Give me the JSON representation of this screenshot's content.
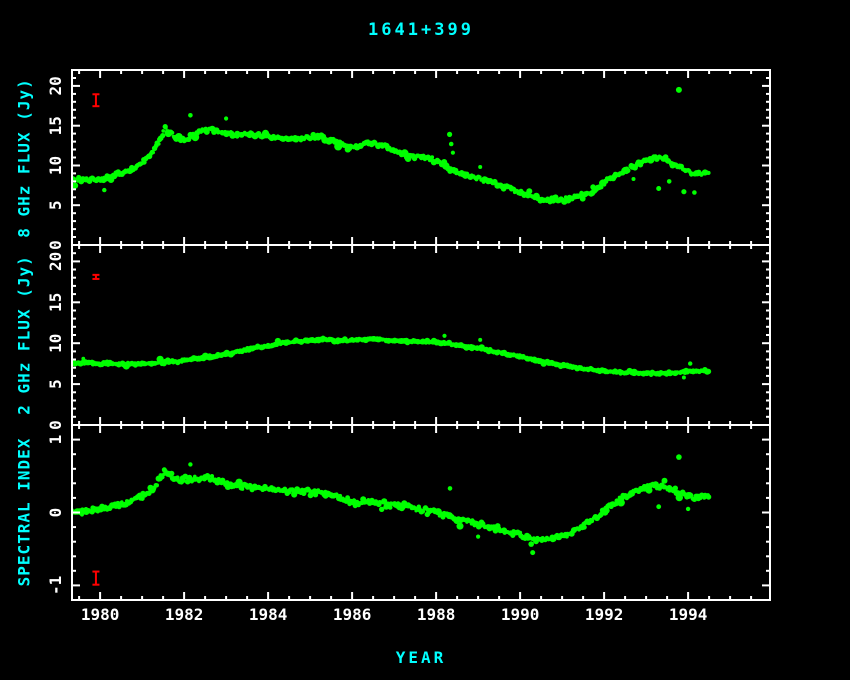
{
  "chart_data": {
    "type": "scatter",
    "title": "1641+399",
    "xlabel": "YEAR",
    "layout": {
      "stacked_panels": 3,
      "shared_x_axis": true,
      "grid": false,
      "legend": "none"
    },
    "x_range": [
      1979.33,
      1995.95
    ],
    "x_ticks": [
      1980,
      1982,
      1984,
      1986,
      1988,
      1990,
      1992,
      1994
    ],
    "x_tick_labels": [
      "1980",
      "1982",
      "1984",
      "1986",
      "1988",
      "1990",
      "1992",
      "1994"
    ],
    "x_minor_step": 0.5,
    "colors": {
      "background": "#000000",
      "frame": "#ffffff",
      "tick_numbers": "#ffffff",
      "axis_labels": "#00ffff",
      "data_points": "#00ff00",
      "error_bars": "#ff0000"
    },
    "panels": [
      {
        "id": "flux-8ghz",
        "ylabel": "8 GHz FLUX (Jy)",
        "y_range": [
          0,
          22
        ],
        "y_ticks": [
          0,
          5,
          10,
          15,
          20
        ],
        "y_tick_labels": [
          "0",
          "5",
          "10",
          "15",
          "20"
        ],
        "y_minor_step": 1,
        "t_range": [
          1979.32,
          1994.5
        ],
        "step": 0.03,
        "jitter": 0.35,
        "seed": 101,
        "anchors": [
          [
            1979.3,
            8.2
          ],
          [
            1979.7,
            8.3
          ],
          [
            1980.0,
            8.3
          ],
          [
            1980.2,
            8.6
          ],
          [
            1980.5,
            9.0
          ],
          [
            1980.8,
            9.6
          ],
          [
            1981.0,
            10.3
          ],
          [
            1981.2,
            11.3
          ],
          [
            1981.4,
            13.0
          ],
          [
            1981.55,
            14.9
          ],
          [
            1981.7,
            14.0
          ],
          [
            1981.9,
            13.2
          ],
          [
            1982.1,
            13.4
          ],
          [
            1982.3,
            14.2
          ],
          [
            1982.6,
            14.6
          ],
          [
            1982.9,
            14.2
          ],
          [
            1983.2,
            13.8
          ],
          [
            1983.5,
            14.0
          ],
          [
            1983.8,
            13.7
          ],
          [
            1984.1,
            13.5
          ],
          [
            1984.5,
            13.3
          ],
          [
            1984.9,
            13.5
          ],
          [
            1985.2,
            13.6
          ],
          [
            1985.5,
            13.2
          ],
          [
            1985.8,
            12.6
          ],
          [
            1986.1,
            12.3
          ],
          [
            1986.4,
            12.8
          ],
          [
            1986.7,
            12.5
          ],
          [
            1987.0,
            11.9
          ],
          [
            1987.3,
            11.3
          ],
          [
            1987.7,
            11.1
          ],
          [
            1988.0,
            10.6
          ],
          [
            1988.3,
            9.5
          ],
          [
            1988.6,
            8.9
          ],
          [
            1989.0,
            8.4
          ],
          [
            1989.4,
            7.7
          ],
          [
            1989.8,
            7.0
          ],
          [
            1990.1,
            6.4
          ],
          [
            1990.4,
            5.9
          ],
          [
            1990.7,
            5.6
          ],
          [
            1991.0,
            5.7
          ],
          [
            1991.4,
            6.1
          ],
          [
            1991.8,
            6.9
          ],
          [
            1992.1,
            8.2
          ],
          [
            1992.5,
            9.4
          ],
          [
            1992.9,
            10.4
          ],
          [
            1993.2,
            11.0
          ],
          [
            1993.5,
            10.7
          ],
          [
            1993.8,
            9.8
          ],
          [
            1994.1,
            9.0
          ],
          [
            1994.5,
            9.0
          ]
        ],
        "outliers": [
          [
            1982.15,
            16.3,
            2.3
          ],
          [
            1983.0,
            15.9,
            2.1
          ],
          [
            1988.32,
            13.9,
            2.6
          ],
          [
            1988.36,
            12.7,
            2.3
          ],
          [
            1988.4,
            11.6,
            2.1
          ],
          [
            1989.05,
            9.8,
            2.0
          ],
          [
            1993.78,
            19.5,
            3.0
          ],
          [
            1993.3,
            7.1,
            2.5
          ],
          [
            1993.55,
            8.0,
            2.3
          ],
          [
            1993.9,
            6.7,
            2.6
          ],
          [
            1994.15,
            6.6,
            2.3
          ],
          [
            1980.1,
            6.9,
            2.2
          ],
          [
            1992.7,
            8.3,
            2.0
          ]
        ],
        "errorbar": {
          "year": 1979.9,
          "value": 18.2,
          "half": 0.75
        }
      },
      {
        "id": "flux-2ghz",
        "ylabel": "2 GHz FLUX (Jy)",
        "y_range": [
          0,
          22
        ],
        "y_ticks": [
          0,
          5,
          10,
          15,
          20
        ],
        "y_tick_labels": [
          "0",
          "5",
          "10",
          "15",
          "20"
        ],
        "y_minor_step": 1,
        "t_range": [
          1979.32,
          1994.5
        ],
        "step": 0.03,
        "jitter": 0.18,
        "seed": 202,
        "anchors": [
          [
            1979.3,
            7.6
          ],
          [
            1980.0,
            7.5
          ],
          [
            1980.5,
            7.4
          ],
          [
            1981.0,
            7.5
          ],
          [
            1981.5,
            7.6
          ],
          [
            1982.0,
            7.9
          ],
          [
            1982.5,
            8.2
          ],
          [
            1983.0,
            8.7
          ],
          [
            1983.5,
            9.2
          ],
          [
            1984.0,
            9.7
          ],
          [
            1984.5,
            10.1
          ],
          [
            1985.0,
            10.3
          ],
          [
            1985.3,
            10.5
          ],
          [
            1985.7,
            10.3
          ],
          [
            1986.0,
            10.4
          ],
          [
            1986.5,
            10.5
          ],
          [
            1987.0,
            10.3
          ],
          [
            1987.5,
            10.2
          ],
          [
            1988.0,
            10.1
          ],
          [
            1988.5,
            9.8
          ],
          [
            1989.0,
            9.4
          ],
          [
            1989.5,
            8.9
          ],
          [
            1990.0,
            8.4
          ],
          [
            1990.5,
            7.8
          ],
          [
            1991.0,
            7.3
          ],
          [
            1991.5,
            6.9
          ],
          [
            1992.0,
            6.6
          ],
          [
            1992.5,
            6.4
          ],
          [
            1993.0,
            6.3
          ],
          [
            1993.5,
            6.3
          ],
          [
            1994.0,
            6.5
          ],
          [
            1994.5,
            6.7
          ]
        ],
        "outliers": [
          [
            1988.2,
            10.9,
            2.1
          ],
          [
            1989.05,
            10.4,
            2.0
          ],
          [
            1994.05,
            7.5,
            2.2
          ],
          [
            1993.9,
            5.8,
            2.0
          ],
          [
            1979.6,
            8.1,
            1.9
          ]
        ],
        "errorbar": {
          "year": 1979.9,
          "value": 18.1,
          "half": 0.25
        }
      },
      {
        "id": "spectral-index",
        "ylabel": "SPECTRAL INDEX",
        "y_range": [
          -1.2,
          1.2
        ],
        "y_ticks": [
          -1,
          0,
          1
        ],
        "y_tick_labels": [
          "-1",
          "0",
          "1"
        ],
        "y_minor_step": 0.2,
        "t_range": [
          1979.32,
          1994.5
        ],
        "step": 0.03,
        "jitter": 0.05,
        "seed": 303,
        "anchors": [
          [
            1979.3,
            0.0
          ],
          [
            1979.8,
            0.02
          ],
          [
            1980.2,
            0.06
          ],
          [
            1980.6,
            0.12
          ],
          [
            1981.0,
            0.22
          ],
          [
            1981.3,
            0.35
          ],
          [
            1981.55,
            0.56
          ],
          [
            1981.8,
            0.46
          ],
          [
            1982.0,
            0.42
          ],
          [
            1982.3,
            0.46
          ],
          [
            1982.6,
            0.48
          ],
          [
            1983.0,
            0.4
          ],
          [
            1983.4,
            0.36
          ],
          [
            1983.8,
            0.33
          ],
          [
            1984.2,
            0.3
          ],
          [
            1984.6,
            0.28
          ],
          [
            1985.0,
            0.28
          ],
          [
            1985.4,
            0.26
          ],
          [
            1985.8,
            0.18
          ],
          [
            1986.1,
            0.12
          ],
          [
            1986.5,
            0.16
          ],
          [
            1987.0,
            0.1
          ],
          [
            1987.5,
            0.06
          ],
          [
            1988.0,
            0.02
          ],
          [
            1988.4,
            -0.08
          ],
          [
            1988.8,
            -0.13
          ],
          [
            1989.2,
            -0.18
          ],
          [
            1989.6,
            -0.25
          ],
          [
            1990.0,
            -0.3
          ],
          [
            1990.4,
            -0.38
          ],
          [
            1990.8,
            -0.35
          ],
          [
            1991.2,
            -0.28
          ],
          [
            1991.6,
            -0.15
          ],
          [
            1992.0,
            0.02
          ],
          [
            1992.4,
            0.2
          ],
          [
            1992.8,
            0.32
          ],
          [
            1993.2,
            0.38
          ],
          [
            1993.5,
            0.33
          ],
          [
            1993.8,
            0.28
          ],
          [
            1994.1,
            0.2
          ],
          [
            1994.5,
            0.22
          ]
        ],
        "outliers": [
          [
            1993.78,
            0.76,
            2.8
          ],
          [
            1988.33,
            0.33,
            2.3
          ],
          [
            1990.3,
            -0.55,
            2.5
          ],
          [
            1989.0,
            -0.33,
            2.1
          ],
          [
            1993.3,
            0.08,
            2.4
          ],
          [
            1994.0,
            0.05,
            2.2
          ],
          [
            1982.15,
            0.66,
            2.2
          ]
        ],
        "errorbar": {
          "year": 1979.9,
          "value": -0.9,
          "half": 0.09
        }
      }
    ]
  }
}
